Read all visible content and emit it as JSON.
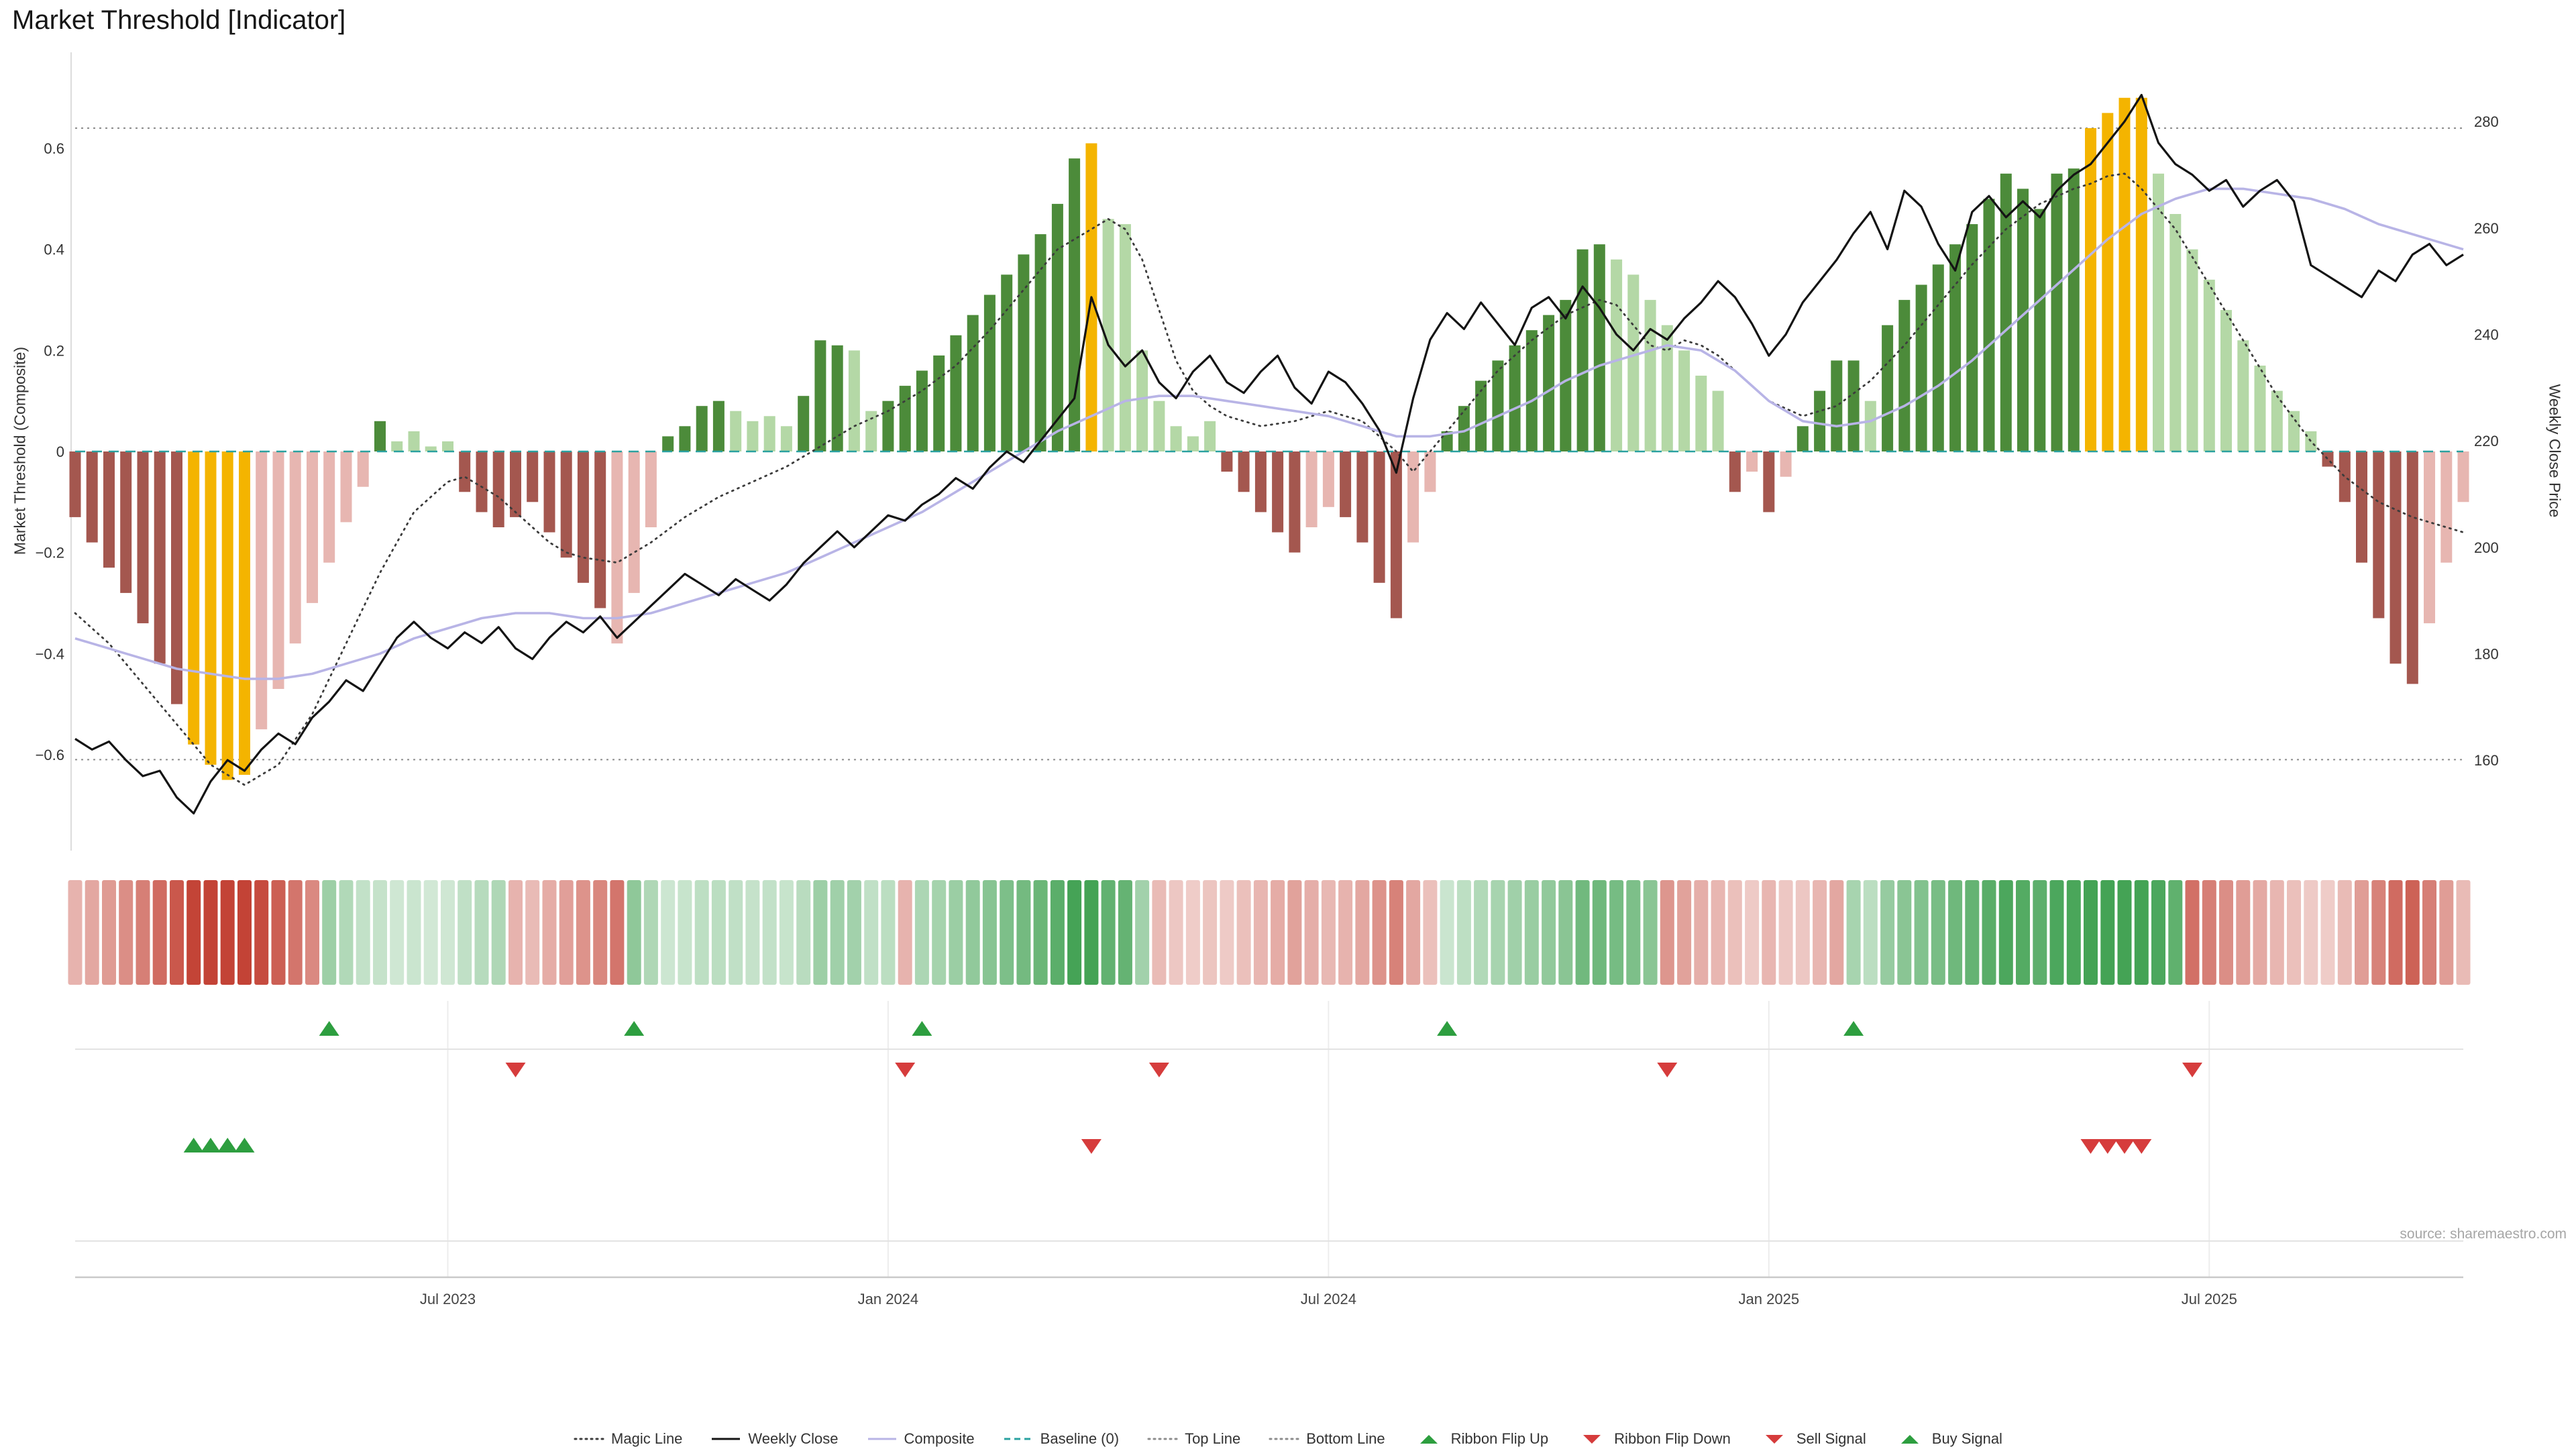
{
  "title": "Market Threshold [Indicator]",
  "source": "source: sharemaestro.com",
  "axes": {
    "left_label": "Market Threshold (Composite)",
    "right_label": "Weekly Close Price",
    "left_ticks": [
      {
        "v": 0.6,
        "label": "0.6"
      },
      {
        "v": 0.4,
        "label": "0.4"
      },
      {
        "v": 0.2,
        "label": "0.2"
      },
      {
        "v": 0,
        "label": "0"
      },
      {
        "v": -0.2,
        "label": "−0.2"
      },
      {
        "v": -0.4,
        "label": "−0.4"
      },
      {
        "v": -0.6,
        "label": "−0.6"
      }
    ],
    "right_ticks": [
      {
        "v": 280,
        "label": "280"
      },
      {
        "v": 260,
        "label": "260"
      },
      {
        "v": 240,
        "label": "240"
      },
      {
        "v": 220,
        "label": "220"
      },
      {
        "v": 200,
        "label": "200"
      },
      {
        "v": 180,
        "label": "180"
      },
      {
        "v": 160,
        "label": "160"
      }
    ],
    "x_ticks": [
      {
        "week": 22,
        "label": "Jul 2023"
      },
      {
        "week": 48,
        "label": "Jan 2024"
      },
      {
        "week": 74,
        "label": "Jul 2024"
      },
      {
        "week": 100,
        "label": "Jan 2025"
      },
      {
        "week": 126,
        "label": "Jul 2025"
      }
    ]
  },
  "colors": {
    "bar_dark_red": "#a4574f",
    "bar_light_red": "#e7b6b1",
    "bar_gold": "#f4b400",
    "bar_dark_green": "#4c8b3a",
    "bar_light_green": "#b4d8a6",
    "weekly_close": "#141414",
    "composite_line": "#b8b4e6",
    "magic_line": "#3c3c3c",
    "baseline": "#2aa1a0",
    "top_bottom_line": "#8c8c8c",
    "signal_green": "#2d9e3f",
    "signal_red": "#d63c3c",
    "ribbon_green": "#3a9e4c",
    "ribbon_red": "#c0392b"
  },
  "legend": [
    {
      "label": "Magic Line",
      "marker": "dotted-line",
      "color": "#3c3c3c"
    },
    {
      "label": "Weekly Close",
      "marker": "solid-line",
      "color": "#141414"
    },
    {
      "label": "Composite",
      "marker": "solid-line",
      "color": "#b8b4e6"
    },
    {
      "label": "Baseline (0)",
      "marker": "dashed-line",
      "color": "#2aa1a0"
    },
    {
      "label": "Top Line",
      "marker": "dotted-line",
      "color": "#8c8c8c"
    },
    {
      "label": "Bottom Line",
      "marker": "dotted-line",
      "color": "#8c8c8c"
    },
    {
      "label": "Ribbon Flip Up",
      "marker": "triangle-up",
      "color": "#2d9e3f"
    },
    {
      "label": "Ribbon Flip Down",
      "marker": "triangle-down",
      "color": "#d63c3c"
    },
    {
      "label": "Sell Signal",
      "marker": "triangle-down",
      "color": "#d63c3c"
    },
    {
      "label": "Buy Signal",
      "marker": "triangle-up",
      "color": "#2d9e3f"
    }
  ],
  "chart_data": {
    "type": "combo",
    "x_unit": "week",
    "left_axis_range": [
      -0.79,
      0.79
    ],
    "right_axis_range": [
      143,
      293
    ],
    "top_line": 0.64,
    "bottom_line": -0.61,
    "baseline": 0,
    "composite_bars": {
      "values": [
        -0.13,
        -0.18,
        -0.23,
        -0.28,
        -0.34,
        -0.42,
        -0.5,
        -0.58,
        -0.62,
        -0.65,
        -0.64,
        -0.55,
        -0.47,
        -0.38,
        -0.3,
        -0.22,
        -0.14,
        -0.07,
        0.06,
        0.02,
        0.04,
        0.01,
        0.02,
        -0.08,
        -0.12,
        -0.15,
        -0.13,
        -0.1,
        -0.16,
        -0.21,
        -0.26,
        -0.31,
        -0.38,
        -0.28,
        -0.15,
        0.03,
        0.05,
        0.09,
        0.1,
        0.08,
        0.06,
        0.07,
        0.05,
        0.11,
        0.22,
        0.21,
        0.2,
        0.08,
        0.1,
        0.13,
        0.16,
        0.19,
        0.23,
        0.27,
        0.31,
        0.35,
        0.39,
        0.43,
        0.49,
        0.58,
        0.61,
        0.46,
        0.45,
        0.2,
        0.1,
        0.05,
        0.03,
        0.06,
        -0.04,
        -0.08,
        -0.12,
        -0.16,
        -0.2,
        -0.15,
        -0.11,
        -0.13,
        -0.18,
        -0.26,
        -0.33,
        -0.18,
        -0.08,
        0.04,
        0.09,
        0.14,
        0.18,
        0.21,
        0.24,
        0.27,
        0.3,
        0.4,
        0.41,
        0.38,
        0.35,
        0.3,
        0.25,
        0.2,
        0.15,
        0.12,
        -0.08,
        -0.04,
        -0.12,
        -0.05,
        0.05,
        0.12,
        0.18,
        0.18,
        0.1,
        0.25,
        0.3,
        0.33,
        0.37,
        0.41,
        0.45,
        0.5,
        0.55,
        0.52,
        0.48,
        0.55,
        0.56,
        0.64,
        0.67,
        0.7,
        0.7,
        0.55,
        0.47,
        0.4,
        0.34,
        0.28,
        0.22,
        0.17,
        0.12,
        0.08,
        0.04,
        -0.03,
        -0.1,
        -0.22,
        -0.33,
        -0.42,
        -0.46,
        -0.34,
        -0.22,
        -0.1
      ],
      "color_keys": [
        "dr",
        "dr",
        "dr",
        "dr",
        "dr",
        "dr",
        "dr",
        "g",
        "g",
        "g",
        "g",
        "pr",
        "pr",
        "pr",
        "pr",
        "pr",
        "pr",
        "pr",
        "dg",
        "lg",
        "lg",
        "lg",
        "lg",
        "dr",
        "dr",
        "dr",
        "dr",
        "dr",
        "dr",
        "dr",
        "dr",
        "dr",
        "pr",
        "pr",
        "pr",
        "dg",
        "dg",
        "dg",
        "dg",
        "lg",
        "lg",
        "lg",
        "lg",
        "dg",
        "dg",
        "dg",
        "lg",
        "lg",
        "dg",
        "dg",
        "dg",
        "dg",
        "dg",
        "dg",
        "dg",
        "dg",
        "dg",
        "dg",
        "dg",
        "dg",
        "g",
        "lg",
        "lg",
        "lg",
        "lg",
        "lg",
        "lg",
        "lg",
        "dr",
        "dr",
        "dr",
        "dr",
        "dr",
        "pr",
        "pr",
        "dr",
        "dr",
        "dr",
        "dr",
        "pr",
        "pr",
        "dg",
        "dg",
        "dg",
        "dg",
        "dg",
        "dg",
        "dg",
        "dg",
        "dg",
        "dg",
        "lg",
        "lg",
        "lg",
        "lg",
        "lg",
        "lg",
        "lg",
        "dr",
        "pr",
        "dr",
        "pr",
        "dg",
        "dg",
        "dg",
        "dg",
        "lg",
        "dg",
        "dg",
        "dg",
        "dg",
        "dg",
        "dg",
        "dg",
        "dg",
        "dg",
        "dg",
        "dg",
        "dg",
        "g",
        "g",
        "g",
        "g",
        "lg",
        "lg",
        "lg",
        "lg",
        "lg",
        "lg",
        "lg",
        "lg",
        "lg",
        "lg",
        "dr",
        "dr",
        "dr",
        "dr",
        "dr",
        "dr",
        "pr",
        "pr",
        "pr"
      ]
    },
    "weekly_close": [
      164,
      162,
      163.5,
      160,
      157,
      158,
      153,
      150,
      156,
      160,
      158,
      162,
      165,
      163,
      168,
      171,
      175,
      173,
      178,
      183,
      186,
      183,
      181,
      184,
      182,
      185,
      181,
      179,
      183,
      186,
      184,
      187,
      183,
      186,
      189,
      192,
      195,
      193,
      191,
      194,
      192,
      190,
      193,
      197,
      200,
      203,
      200,
      203,
      206,
      205,
      208,
      210,
      213,
      211,
      215,
      218,
      216,
      220,
      224,
      228,
      247,
      238,
      234,
      237,
      231,
      228,
      233,
      236,
      231,
      229,
      233,
      236,
      230,
      227,
      233,
      231,
      227,
      222,
      214,
      228,
      239,
      244,
      241,
      246,
      242,
      238,
      245,
      247,
      243,
      249,
      245,
      240,
      237,
      241,
      239,
      243,
      246,
      250,
      247,
      242,
      236,
      240,
      246,
      250,
      254,
      259,
      263,
      256,
      267,
      264,
      257,
      252,
      263,
      266,
      262,
      265,
      262,
      267,
      270,
      272,
      276,
      280,
      285,
      276,
      272,
      270,
      267,
      269,
      264,
      267,
      269,
      265,
      253,
      251,
      249,
      247,
      252,
      250,
      255,
      257,
      253,
      255
    ],
    "composite_line": [
      -0.37,
      -0.38,
      -0.39,
      -0.4,
      -0.41,
      -0.42,
      -0.43,
      -0.435,
      -0.44,
      -0.445,
      -0.45,
      -0.45,
      -0.45,
      -0.445,
      -0.44,
      -0.43,
      -0.42,
      -0.41,
      -0.4,
      -0.385,
      -0.37,
      -0.36,
      -0.35,
      -0.34,
      -0.33,
      -0.325,
      -0.32,
      -0.32,
      -0.32,
      -0.325,
      -0.33,
      -0.33,
      -0.33,
      -0.325,
      -0.32,
      -0.31,
      -0.3,
      -0.29,
      -0.28,
      -0.27,
      -0.26,
      -0.25,
      -0.24,
      -0.225,
      -0.21,
      -0.195,
      -0.18,
      -0.165,
      -0.15,
      -0.135,
      -0.12,
      -0.1,
      -0.08,
      -0.06,
      -0.04,
      -0.02,
      0,
      0.02,
      0.04,
      0.055,
      0.07,
      0.085,
      0.1,
      0.105,
      0.11,
      0.11,
      0.11,
      0.105,
      0.1,
      0.095,
      0.09,
      0.085,
      0.08,
      0.075,
      0.07,
      0.06,
      0.05,
      0.04,
      0.03,
      0.03,
      0.03,
      0.035,
      0.04,
      0.055,
      0.07,
      0.085,
      0.1,
      0.12,
      0.14,
      0.155,
      0.17,
      0.18,
      0.19,
      0.2,
      0.21,
      0.205,
      0.2,
      0.18,
      0.16,
      0.13,
      0.1,
      0.08,
      0.06,
      0.055,
      0.05,
      0.055,
      0.06,
      0.075,
      0.09,
      0.11,
      0.13,
      0.155,
      0.18,
      0.21,
      0.24,
      0.27,
      0.3,
      0.33,
      0.36,
      0.39,
      0.42,
      0.445,
      0.47,
      0.485,
      0.5,
      0.51,
      0.52,
      0.52,
      0.52,
      0.515,
      0.51,
      0.505,
      0.5,
      0.49,
      0.48,
      0.465,
      0.45,
      0.44,
      0.43,
      0.42,
      0.41,
      0.4
    ],
    "magic_line": [
      -0.32,
      -0.35,
      -0.38,
      -0.42,
      -0.46,
      -0.5,
      -0.54,
      -0.58,
      -0.62,
      -0.64,
      -0.66,
      -0.64,
      -0.62,
      -0.57,
      -0.52,
      -0.45,
      -0.38,
      -0.31,
      -0.24,
      -0.18,
      -0.12,
      -0.09,
      -0.06,
      -0.05,
      -0.07,
      -0.09,
      -0.12,
      -0.15,
      -0.18,
      -0.2,
      -0.21,
      -0.215,
      -0.22,
      -0.2,
      -0.18,
      -0.155,
      -0.13,
      -0.11,
      -0.09,
      -0.075,
      -0.06,
      -0.045,
      -0.03,
      -0.01,
      0.01,
      0.03,
      0.05,
      0.065,
      0.08,
      0.1,
      0.12,
      0.145,
      0.17,
      0.205,
      0.24,
      0.28,
      0.32,
      0.36,
      0.4,
      0.42,
      0.44,
      0.46,
      0.44,
      0.38,
      0.28,
      0.18,
      0.12,
      0.09,
      0.07,
      0.06,
      0.05,
      0.055,
      0.06,
      0.07,
      0.08,
      0.07,
      0.06,
      0.03,
      0,
      -0.04,
      0,
      0.04,
      0.08,
      0.12,
      0.16,
      0.19,
      0.22,
      0.245,
      0.27,
      0.285,
      0.3,
      0.29,
      0.25,
      0.21,
      0.2,
      0.22,
      0.21,
      0.19,
      0.16,
      0.13,
      0.1,
      0.085,
      0.07,
      0.08,
      0.09,
      0.115,
      0.14,
      0.175,
      0.21,
      0.25,
      0.29,
      0.33,
      0.37,
      0.405,
      0.44,
      0.465,
      0.49,
      0.505,
      0.52,
      0.53,
      0.545,
      0.55,
      0.52,
      0.48,
      0.44,
      0.385,
      0.33,
      0.275,
      0.22,
      0.165,
      0.11,
      0.065,
      0.02,
      -0.015,
      -0.05,
      -0.075,
      -0.1,
      -0.115,
      -0.13,
      -0.14,
      -0.15,
      -0.16
    ],
    "signals": {
      "ribbon_flip_up_weeks": [
        15,
        33,
        50,
        81,
        105
      ],
      "ribbon_flip_down_weeks": [
        26,
        49,
        64,
        94,
        125
      ],
      "buy_signal_weeks": [
        7,
        8,
        9,
        10
      ],
      "sell_signal_weeks": [
        60,
        119,
        120,
        121,
        122
      ]
    }
  }
}
